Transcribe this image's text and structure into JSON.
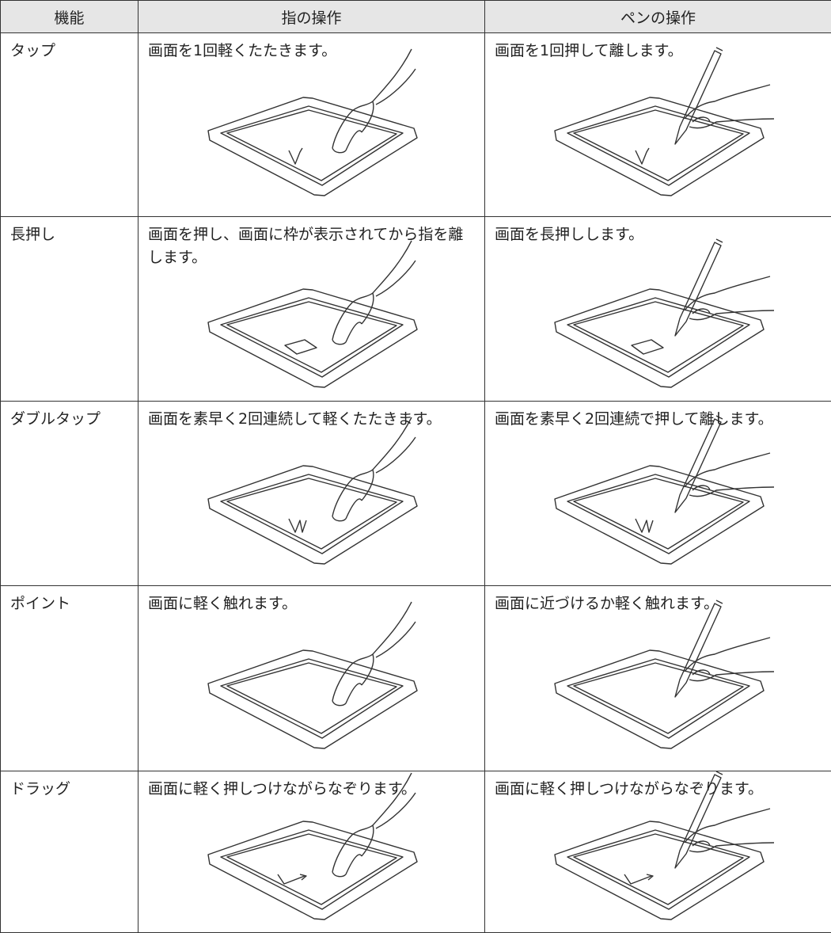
{
  "table": {
    "header": [
      "機能",
      "指の操作",
      "ペンの操作"
    ],
    "rows": [
      [
        "タップ",
        "画面を1回軽くたたきます。",
        "画面を1回押して離します。"
      ],
      [
        "長押し",
        "画面を押し、画面に枠が表示されてから指を離します。",
        "画面を長押しします。"
      ],
      [
        "ダブルタップ",
        "画面を素早く2回連続して軽くたたきます。",
        "画面を素早く2回連続で押して離します。"
      ],
      [
        "ポイント",
        "画面に軽く触れます。",
        "画面に近づけるか軽く触れます。"
      ],
      [
        "ドラッグ",
        "画面に軽く押しつけながらなぞります。",
        "画面に軽く押しつけながらなぞります。"
      ]
    ]
  }
}
